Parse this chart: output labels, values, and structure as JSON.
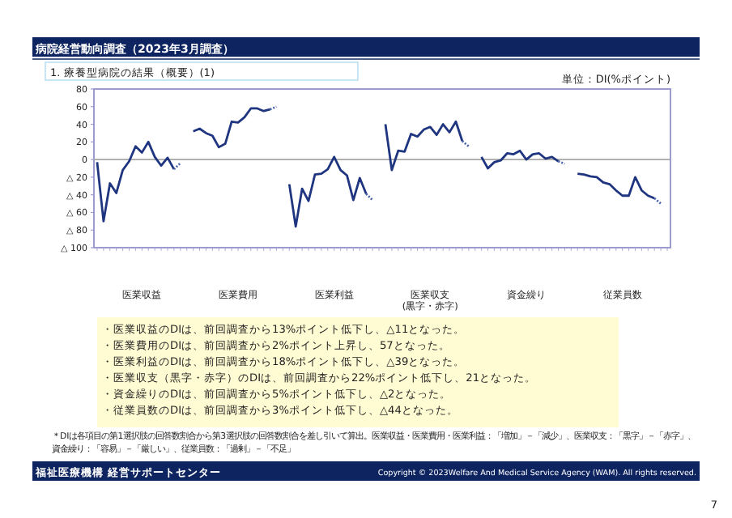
{
  "chart_data": {
    "type": "line",
    "title": "病院経営動向調査（2023年3月調査）",
    "subtitle": "1. 療養型病院の結果（概要）(1)",
    "categories": [
      null,
      null,
      null,
      null,
      null,
      null,
      null,
      null,
      null,
      null,
      null,
      null,
      null,
      null,
      null,
      null,
      null,
      null,
      null,
      null,
      null,
      null,
      null,
      null,
      null,
      null,
      null,
      null,
      null,
      null,
      null,
      null,
      null,
      null,
      null,
      null,
      null,
      null,
      null,
      null,
      null,
      null,
      null,
      null,
      null,
      null,
      null,
      null,
      null,
      null,
      null,
      null,
      null,
      null,
      null,
      null,
      null,
      null,
      null,
      null,
      null,
      null,
      null,
      null,
      null,
      null,
      null,
      null,
      null,
      null,
      null,
      null,
      null,
      null,
      null,
      null,
      null,
      null,
      null,
      null,
      null,
      null,
      null,
      null,
      null,
      null,
      null,
      null,
      null,
      null
    ],
    "ylim": [
      -100,
      80
    ],
    "yticks": [
      {
        "value": -100,
        "label": "△ 100"
      },
      {
        "value": -80,
        "label": "△ 80"
      },
      {
        "value": -60,
        "label": "△ 60"
      },
      {
        "value": -40,
        "label": "△ 40"
      },
      {
        "value": -20,
        "label": "△ 20"
      },
      0,
      20,
      40,
      60,
      80
    ],
    "tick_labels": "y",
    "ref_lines": [
      {
        "axis": "y",
        "value": 0,
        "color": "#a6a6a6"
      }
    ],
    "series": [
      {
        "color": "#1f3580",
        "values": [
          -3,
          -70,
          -27,
          -38,
          -12,
          -2,
          15,
          8,
          20,
          3,
          -7,
          2,
          -11,
          null,
          null,
          32,
          35,
          30,
          27,
          14,
          18,
          43,
          42,
          48,
          58,
          58,
          55,
          57,
          null,
          null,
          -28,
          -76,
          -33,
          -47,
          -17,
          -16,
          -11,
          3,
          -12,
          -18,
          -46,
          -21,
          -39,
          null,
          null,
          40,
          -12,
          10,
          9,
          29,
          26,
          34,
          37,
          28,
          40,
          31,
          43,
          21,
          null,
          null,
          3,
          -10,
          -3,
          -1,
          7,
          6,
          10,
          0,
          6,
          7,
          1,
          3,
          -2,
          null,
          null,
          -16,
          -17,
          -19,
          -20,
          -26,
          -28,
          -35,
          -41,
          -41,
          -20,
          -35,
          -41,
          -44,
          null,
          null
        ]
      },
      {
        "color": "#4a63aa",
        "line_style": "dotted",
        "values": [
          null,
          null,
          null,
          null,
          null,
          null,
          null,
          null,
          null,
          null,
          null,
          null,
          -11,
          -4,
          null,
          null,
          null,
          null,
          null,
          null,
          null,
          null,
          null,
          null,
          null,
          null,
          null,
          57,
          60,
          null,
          null,
          null,
          null,
          null,
          null,
          null,
          null,
          null,
          null,
          null,
          null,
          null,
          -39,
          -46,
          null,
          null,
          null,
          null,
          null,
          null,
          null,
          null,
          null,
          null,
          null,
          null,
          null,
          21,
          15,
          null,
          null,
          null,
          null,
          null,
          null,
          null,
          null,
          null,
          null,
          null,
          null,
          null,
          -2,
          -5,
          null,
          null,
          null,
          null,
          null,
          null,
          null,
          null,
          null,
          null,
          null,
          null,
          null,
          -44,
          -50,
          null
        ]
      }
    ],
    "annotations": [
      "単位：DI(%ポイント)",
      "医業収益",
      "医業費用",
      "医業利益",
      "医業収支(黒字・赤字)",
      "資金繰り",
      "従業員数",
      "・医業収益のDIは、前回調査から13%ポイント低下し、△11となった。",
      "・医業費用のDIは、前回調査から2%ポイント上昇し、57となった。",
      "・医業利益のDIは、前回調査から18%ポイント低下し、△39となった。",
      "・医業収支（黒字・赤字）のDIは、前回調査から22%ポイント低下し、21となった。",
      "・資金繰りのDIは、前回調査から5%ポイント低下し、△2となった。",
      "・従業員数のDIは、前回調査から3%ポイント低下し、△44となった。",
      "＊DIは各項目の第1選択肢の回答数割合から第3選択肢の回答数割合を差し引いて算出。医業収益・医業費用・医業利益：「増加」－「減少」、医業収支：「黒字」－「赤字」、資金繰り：「容易」－「厳しい」、従業員数：「過剰」－「不足」",
      "福祉医療機構 経営サポートセンター",
      "Copyright © 2023Welfare And Medical Service Agency (WAM). All rights reserved.",
      "7"
    ]
  }
}
